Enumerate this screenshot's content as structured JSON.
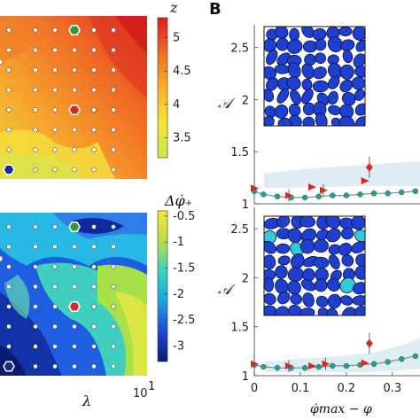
{
  "panel_label": "B",
  "chart_data": [
    {
      "type": "heatmap",
      "colorbar_label": "z",
      "colorbar_ticks": [
        "5",
        "4.5",
        "4",
        "3.5"
      ],
      "colorbar_tick_values": [
        5,
        4.5,
        4,
        3.5
      ],
      "colorbar_range": [
        3.2,
        5.3
      ],
      "colormap": "jet",
      "scatter_rows": 8,
      "scatter_cols": 6,
      "highlights": [
        {
          "row": 0,
          "col": 3,
          "color": "#2e9a3c"
        },
        {
          "row": 4,
          "col": 3,
          "color": "#d42a2a"
        },
        {
          "row": 7,
          "col": 0,
          "color": "#1a2a9c"
        }
      ]
    },
    {
      "type": "heatmap",
      "colorbar_label": "Δφ̇₊",
      "colorbar_ticks": [
        "-0.5",
        "-1",
        "-1.5",
        "-2",
        "-2.5",
        "-3"
      ],
      "colorbar_tick_values": [
        -0.5,
        -1,
        -1.5,
        -2,
        -2.5,
        -3
      ],
      "colorbar_range": [
        -3.3,
        -0.4
      ],
      "colormap": "jet",
      "xlabel": "λ",
      "x_tick_labels": [
        "10",
        "1"
      ],
      "scatter_rows": 8,
      "scatter_cols": 6,
      "highlights": [
        {
          "row": 0,
          "col": 3,
          "color": "#2e9a3c"
        },
        {
          "row": 4,
          "col": 3,
          "color": "#d42a2a"
        },
        {
          "row": 7,
          "col": 0,
          "color": "#1a2a9c"
        }
      ]
    },
    {
      "type": "scatter",
      "ylabel": "𝒜",
      "ylim": [
        1,
        2.7
      ],
      "xlim": [
        0,
        0.36
      ],
      "y_ticks": [
        1,
        1.5,
        2,
        2.5
      ],
      "y_tick_labels": [
        "1",
        "1.5",
        "2",
        "2.5"
      ],
      "series": [
        {
          "values_x": [
            0.0,
            0.02,
            0.05,
            0.08,
            0.11,
            0.14,
            0.17,
            0.2,
            0.23,
            0.26,
            0.29,
            0.32,
            0.35
          ],
          "values_y": [
            1.12,
            1.09,
            1.07,
            1.06,
            1.06,
            1.07,
            1.08,
            1.08,
            1.09,
            1.1,
            1.1,
            1.11,
            1.12
          ],
          "color": "#2a9d8f",
          "marker": "circle"
        },
        {
          "values_x": [
            0.0,
            0.075,
            0.125,
            0.15,
            0.24,
            0.25
          ],
          "values_y": [
            1.15,
            1.08,
            1.16,
            1.13,
            1.22,
            1.35
          ],
          "color": "#d62828",
          "marker": "mixed"
        }
      ]
    },
    {
      "type": "scatter",
      "ylabel": "𝒜",
      "xlabel": "φ̇max − φ",
      "ylim": [
        1,
        2.7
      ],
      "xlim": [
        0,
        0.36
      ],
      "y_ticks": [
        1,
        1.5,
        2,
        2.5
      ],
      "y_tick_labels": [
        "1",
        "1.5",
        "2",
        "2.5"
      ],
      "x_ticks": [
        0,
        0.1,
        0.2,
        0.3
      ],
      "x_tick_labels": [
        "0",
        "0.1",
        "0.2",
        "0.3"
      ],
      "series": [
        {
          "values_x": [
            0.0,
            0.02,
            0.05,
            0.08,
            0.11,
            0.14,
            0.17,
            0.2,
            0.23,
            0.26,
            0.29,
            0.32,
            0.35
          ],
          "values_y": [
            1.11,
            1.09,
            1.08,
            1.08,
            1.08,
            1.09,
            1.1,
            1.1,
            1.11,
            1.12,
            1.14,
            1.17,
            1.2
          ],
          "color": "#2a9d8f",
          "marker": "circle"
        },
        {
          "values_x": [
            0.0,
            0.075,
            0.125,
            0.155,
            0.24,
            0.25
          ],
          "values_y": [
            1.12,
            1.1,
            1.1,
            1.12,
            1.13,
            1.33
          ],
          "color": "#d62828",
          "marker": "mixed"
        }
      ]
    }
  ]
}
